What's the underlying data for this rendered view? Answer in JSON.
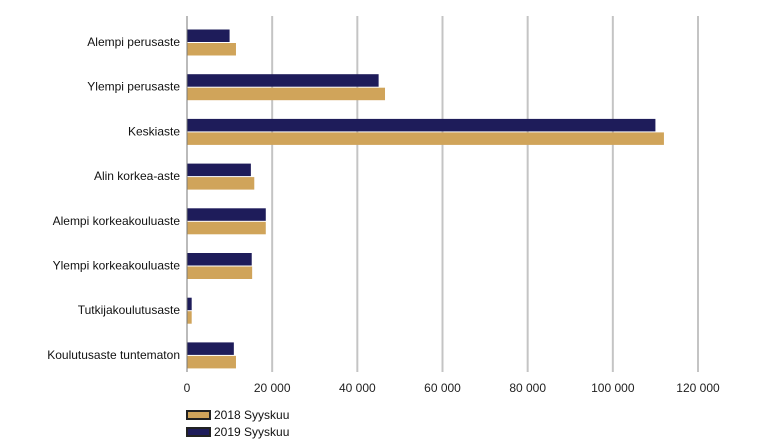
{
  "chart_data": {
    "type": "bar",
    "orientation": "horizontal",
    "categories": [
      "Alempi perusaste",
      "Ylempi perusaste",
      "Keskiaste",
      "Alin korkea-aste",
      "Alempi korkeakouluaste",
      "Ylempi korkeakouluaste",
      "Tutkijakoulutusaste",
      "Koulutusaste tuntematon"
    ],
    "series": [
      {
        "name": "2019 Syyskuu",
        "color": "#1e1c5a",
        "values": [
          10000,
          45000,
          110000,
          15000,
          18500,
          15200,
          1100,
          11000
        ]
      },
      {
        "name": "2018 Syyskuu",
        "color": "#d0a45a",
        "values": [
          11500,
          46500,
          112000,
          15800,
          18500,
          15300,
          1100,
          11500
        ]
      }
    ],
    "xlim": [
      0,
      120000
    ],
    "xticks": [
      0,
      20000,
      40000,
      60000,
      80000,
      100000,
      120000
    ],
    "xtick_labels": [
      "0",
      "20 000",
      "40 000",
      "60 000",
      "80 000",
      "100 000",
      "120 000"
    ],
    "grid": true,
    "legend_position": "bottom-left"
  },
  "legend": {
    "items": [
      {
        "label": "2018 Syyskuu",
        "color": "#d0a45a"
      },
      {
        "label": "2019 Syyskuu",
        "color": "#1e1c5a"
      }
    ]
  }
}
